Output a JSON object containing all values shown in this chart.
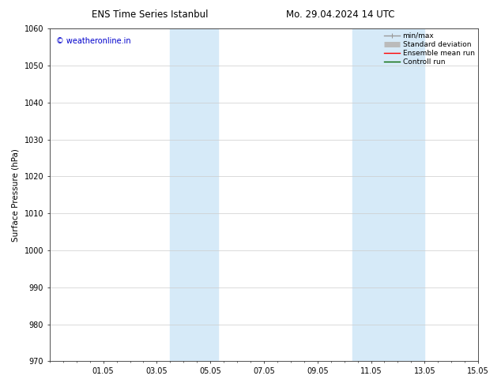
{
  "title_left": "ENS Time Series Istanbul",
  "title_right": "Mo. 29.04.2024 14 UTC",
  "ylabel": "Surface Pressure (hPa)",
  "ylim": [
    970,
    1060
  ],
  "yticks": [
    970,
    980,
    990,
    1000,
    1010,
    1020,
    1030,
    1040,
    1050,
    1060
  ],
  "xtick_labels": [
    "01.05",
    "03.05",
    "05.05",
    "07.05",
    "09.05",
    "11.05",
    "13.05",
    "15.05"
  ],
  "xtick_positions": [
    2,
    4,
    6,
    8,
    10,
    12,
    14,
    16
  ],
  "xlim": [
    0,
    16
  ],
  "shaded_regions": [
    {
      "x_start": 4.5,
      "x_end": 6.3,
      "color": "#d6eaf8",
      "alpha": 1.0
    },
    {
      "x_start": 11.3,
      "x_end": 14.0,
      "color": "#d6eaf8",
      "alpha": 1.0
    }
  ],
  "watermark_text": "© weatheronline.in",
  "watermark_color": "#0000cc",
  "legend_items": [
    {
      "label": "min/max",
      "color": "#999999",
      "lw": 1.0
    },
    {
      "label": "Standard deviation",
      "color": "#bbbbbb",
      "lw": 5
    },
    {
      "label": "Ensemble mean run",
      "color": "#ff0000",
      "lw": 1.0
    },
    {
      "label": "Controll run",
      "color": "#006600",
      "lw": 1.0
    }
  ],
  "background_color": "#ffffff",
  "grid_color": "#cccccc",
  "title_fontsize": 8.5,
  "tick_fontsize": 7,
  "ylabel_fontsize": 7.5,
  "legend_fontsize": 6.5,
  "watermark_fontsize": 7
}
